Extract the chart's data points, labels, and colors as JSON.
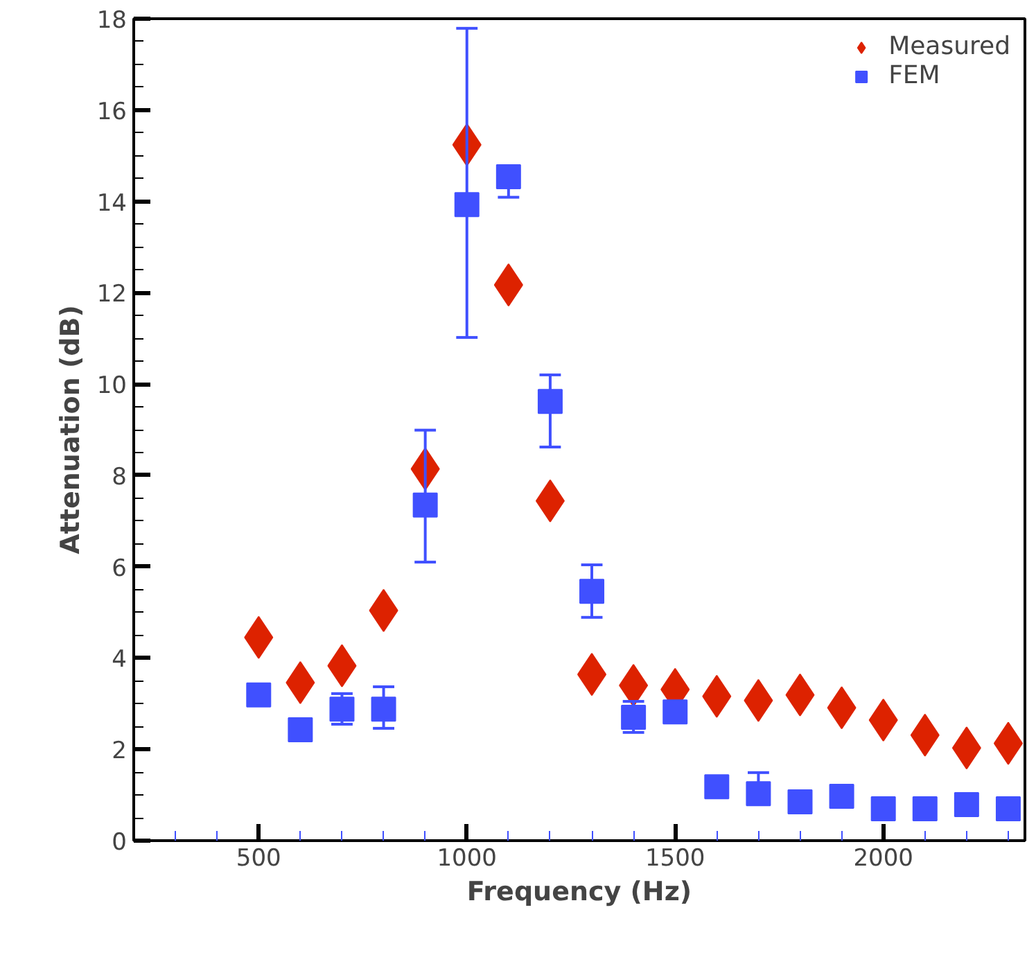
{
  "chart_data": {
    "type": "scatter",
    "xlabel": "Frequency (Hz)",
    "ylabel": "Attenuation (dB)",
    "x": [
      500,
      600,
      700,
      800,
      900,
      1000,
      1100,
      1200,
      1300,
      1400,
      1500,
      1600,
      1700,
      1800,
      1900,
      2000,
      2100,
      2200,
      2300
    ],
    "series": [
      {
        "name": "Measured",
        "color": "#dd2200",
        "marker": "diamond",
        "values": [
          4.45,
          3.46,
          3.83,
          5.04,
          8.14,
          15.24,
          12.17,
          7.44,
          3.64,
          3.4,
          3.31,
          3.16,
          3.07,
          3.19,
          2.91,
          2.64,
          2.31,
          2.03,
          2.13
        ]
      },
      {
        "name": "FEM",
        "color": "#4050ff",
        "marker": "square",
        "values": [
          3.19,
          2.43,
          2.88,
          2.88,
          7.35,
          13.93,
          14.54,
          9.62,
          5.46,
          2.7,
          2.82,
          1.18,
          1.03,
          0.85,
          0.97,
          0.7,
          0.7,
          0.79,
          0.7
        ],
        "errors": [
          null,
          null,
          [
            2.55,
            3.22
          ],
          [
            2.46,
            3.37
          ],
          [
            6.1,
            8.99
          ],
          [
            11.02,
            17.79
          ],
          [
            14.09,
            14.54
          ],
          [
            8.62,
            10.2
          ],
          [
            4.89,
            6.04
          ],
          [
            2.37,
            3.05
          ],
          null,
          null,
          [
            1.03,
            1.49
          ],
          null,
          null,
          null,
          null,
          null,
          null
        ]
      }
    ],
    "xlim": [
      200,
      2340
    ],
    "ylim": [
      0,
      18
    ],
    "xticks": [
      {
        "value": 300,
        "label": null
      },
      {
        "value": 400,
        "label": null
      },
      500,
      {
        "value": 600,
        "label": null
      },
      {
        "value": 700,
        "label": null
      },
      {
        "value": 800,
        "label": null
      },
      {
        "value": 900,
        "label": null
      },
      1000,
      {
        "value": 1100,
        "label": null
      },
      {
        "value": 1200,
        "label": null
      },
      {
        "value": 1300,
        "label": null
      },
      {
        "value": 1400,
        "label": null
      },
      1500,
      {
        "value": 1600,
        "label": null
      },
      {
        "value": 1700,
        "label": null
      },
      {
        "value": 1800,
        "label": null
      },
      {
        "value": 1900,
        "label": null
      },
      2000,
      {
        "value": 2100,
        "label": null
      },
      {
        "value": 2200,
        "label": null
      },
      {
        "value": 2300,
        "label": null
      }
    ],
    "yticks": [
      0,
      {
        "value": 0.5,
        "label": null
      },
      {
        "value": 1,
        "label": null
      },
      {
        "value": 1.5,
        "label": null
      },
      2,
      {
        "value": 2.5,
        "label": null
      },
      {
        "value": 3,
        "label": null
      },
      {
        "value": 3.5,
        "label": null
      },
      4,
      {
        "value": 4.5,
        "label": null
      },
      {
        "value": 5,
        "label": null
      },
      {
        "value": 5.5,
        "label": null
      },
      6,
      {
        "value": 6.5,
        "label": null
      },
      {
        "value": 7,
        "label": null
      },
      {
        "value": 7.5,
        "label": null
      },
      8,
      {
        "value": 8.5,
        "label": null
      },
      {
        "value": 9,
        "label": null
      },
      {
        "value": 9.5,
        "label": null
      },
      10,
      {
        "value": 10.5,
        "label": null
      },
      {
        "value": 11,
        "label": null
      },
      {
        "value": 11.5,
        "label": null
      },
      12,
      {
        "value": 12.5,
        "label": null
      },
      {
        "value": 13,
        "label": null
      },
      {
        "value": 13.5,
        "label": null
      },
      14,
      {
        "value": 14.5,
        "label": null
      },
      {
        "value": 15,
        "label": null
      },
      {
        "value": 15.5,
        "label": null
      },
      16,
      {
        "value": 16.5,
        "label": null
      },
      {
        "value": 17,
        "label": null
      },
      {
        "value": 17.5,
        "label": null
      },
      18
    ],
    "grid": false,
    "legend": "top right"
  }
}
